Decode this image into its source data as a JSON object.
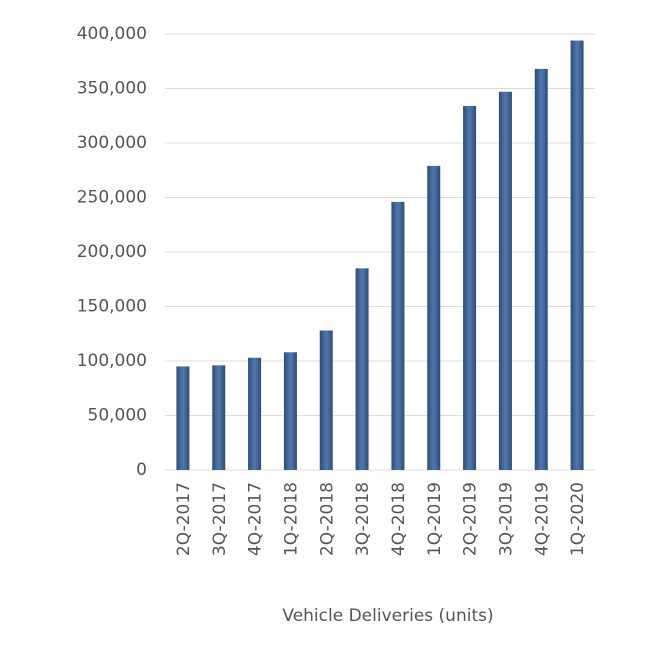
{
  "chart_data": {
    "type": "bar",
    "x_label": "Vehicle Deliveries (units)",
    "categories": [
      "2Q-2017",
      "3Q-2017",
      "4Q-2017",
      "1Q-2018",
      "2Q-2018",
      "3Q-2018",
      "4Q-2018",
      "1Q-2019",
      "2Q-2019",
      "3Q-2019",
      "4Q-2019",
      "1Q-2020"
    ],
    "values": [
      95000,
      96000,
      103000,
      108000,
      128000,
      185000,
      246000,
      279000,
      334000,
      347000,
      368000,
      394000
    ],
    "color": "#3a66a0",
    "ylim": [
      0,
      400000
    ],
    "yticks": [
      0,
      {
        "value": 50000,
        "label": "50,000"
      },
      {
        "value": 100000,
        "label": "100,000"
      },
      {
        "value": 150000,
        "label": "150,000"
      },
      {
        "value": 200000,
        "label": "200,000"
      },
      {
        "value": 250000,
        "label": "250,000"
      },
      {
        "value": 300000,
        "label": "300,000"
      },
      {
        "value": 350000,
        "label": "350,000"
      },
      {
        "value": 400000,
        "label": "400,000"
      }
    ],
    "grid": true
  }
}
